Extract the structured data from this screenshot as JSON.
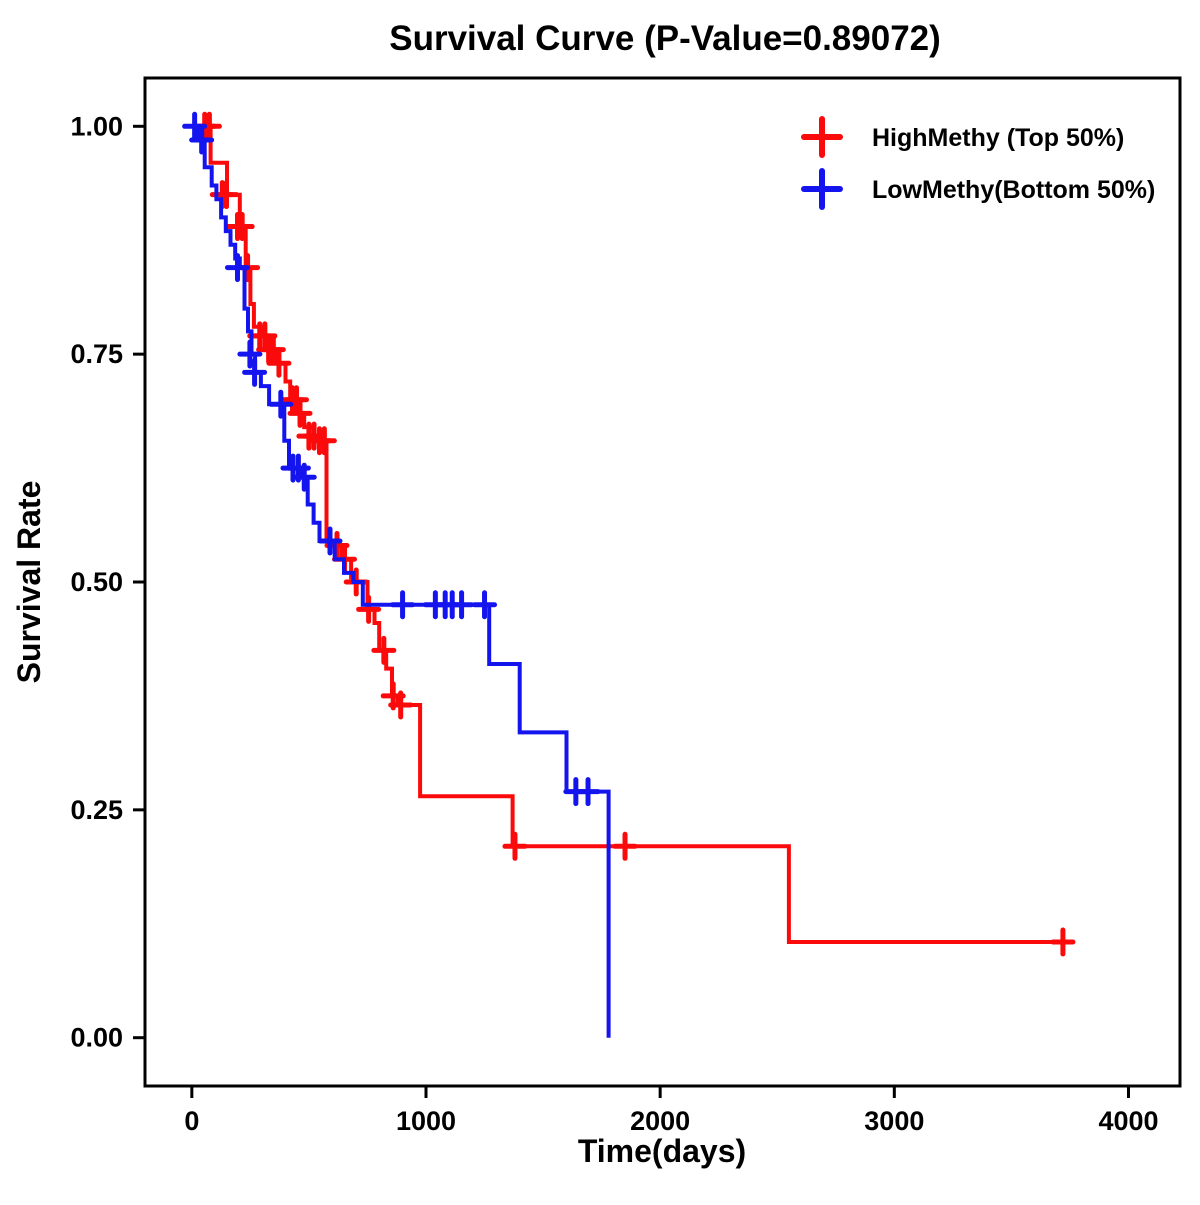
{
  "chart_data": {
    "type": "line",
    "subtype": "kaplan-meier-step",
    "title": "Survival Curve (P-Value=0.89072)",
    "xlabel": "Time(days)",
    "ylabel": "Survival Rate",
    "xlim": [
      -200,
      4220
    ],
    "ylim": [
      -0.053,
      1.053
    ],
    "xticks": {
      "values": [
        0,
        1000,
        2000,
        3000,
        4000
      ],
      "labels": [
        "0",
        "1000",
        "2000",
        "3000",
        "4000"
      ]
    },
    "yticks": {
      "values": [
        0.0,
        0.25,
        0.5,
        0.75,
        1.0
      ],
      "labels": [
        "0.00",
        "0.25",
        "0.50",
        "0.75",
        "1.00"
      ]
    },
    "grid": false,
    "legend_position": "top-right",
    "series": [
      {
        "name": "HighMethy (Top 50%)",
        "color": "#FA0A0A",
        "end_time": 3720,
        "step_points": [
          [
            0,
            1.0
          ],
          [
            80,
            0.96
          ],
          [
            150,
            0.925
          ],
          [
            205,
            0.89
          ],
          [
            230,
            0.845
          ],
          [
            250,
            0.805
          ],
          [
            265,
            0.78
          ],
          [
            300,
            0.77
          ],
          [
            340,
            0.755
          ],
          [
            365,
            0.74
          ],
          [
            400,
            0.72
          ],
          [
            420,
            0.7
          ],
          [
            450,
            0.685
          ],
          [
            480,
            0.67
          ],
          [
            520,
            0.66
          ],
          [
            560,
            0.655
          ],
          [
            575,
            0.545
          ],
          [
            600,
            0.54
          ],
          [
            640,
            0.525
          ],
          [
            680,
            0.505
          ],
          [
            700,
            0.5
          ],
          [
            750,
            0.47
          ],
          [
            780,
            0.455
          ],
          [
            800,
            0.425
          ],
          [
            830,
            0.405
          ],
          [
            855,
            0.375
          ],
          [
            880,
            0.365
          ],
          [
            975,
            0.265
          ],
          [
            1370,
            0.21
          ],
          [
            2550,
            0.105
          ]
        ],
        "censors": [
          [
            55,
            1.0
          ],
          [
            75,
            1.0
          ],
          [
            130,
            0.925
          ],
          [
            148,
            0.925
          ],
          [
            195,
            0.89
          ],
          [
            215,
            0.89
          ],
          [
            238,
            0.845
          ],
          [
            290,
            0.77
          ],
          [
            312,
            0.77
          ],
          [
            328,
            0.755
          ],
          [
            348,
            0.755
          ],
          [
            372,
            0.74
          ],
          [
            430,
            0.7
          ],
          [
            447,
            0.7
          ],
          [
            462,
            0.685
          ],
          [
            500,
            0.66
          ],
          [
            522,
            0.66
          ],
          [
            545,
            0.655
          ],
          [
            566,
            0.655
          ],
          [
            620,
            0.54
          ],
          [
            652,
            0.525
          ],
          [
            702,
            0.5
          ],
          [
            755,
            0.47
          ],
          [
            820,
            0.425
          ],
          [
            860,
            0.375
          ],
          [
            892,
            0.365
          ],
          [
            1380,
            0.21
          ],
          [
            1850,
            0.21
          ],
          [
            3720,
            0.105
          ]
        ]
      },
      {
        "name": "LowMethy(Bottom 50%)",
        "color": "#1414EE",
        "end_time": 1780,
        "step_points": [
          [
            0,
            1.0
          ],
          [
            25,
            0.985
          ],
          [
            55,
            0.955
          ],
          [
            85,
            0.935
          ],
          [
            105,
            0.92
          ],
          [
            125,
            0.9
          ],
          [
            145,
            0.885
          ],
          [
            165,
            0.87
          ],
          [
            185,
            0.855
          ],
          [
            205,
            0.845
          ],
          [
            225,
            0.8
          ],
          [
            240,
            0.775
          ],
          [
            255,
            0.75
          ],
          [
            270,
            0.73
          ],
          [
            295,
            0.715
          ],
          [
            330,
            0.695
          ],
          [
            395,
            0.655
          ],
          [
            415,
            0.625
          ],
          [
            470,
            0.615
          ],
          [
            495,
            0.585
          ],
          [
            520,
            0.565
          ],
          [
            545,
            0.545
          ],
          [
            610,
            0.525
          ],
          [
            650,
            0.51
          ],
          [
            690,
            0.5
          ],
          [
            730,
            0.475
          ],
          [
            1270,
            0.41
          ],
          [
            1400,
            0.335
          ],
          [
            1600,
            0.27
          ],
          [
            1780,
            0.0
          ]
        ],
        "censors": [
          [
            12,
            1.0
          ],
          [
            42,
            0.985
          ],
          [
            195,
            0.845
          ],
          [
            248,
            0.75
          ],
          [
            268,
            0.73
          ],
          [
            380,
            0.695
          ],
          [
            432,
            0.625
          ],
          [
            455,
            0.625
          ],
          [
            480,
            0.615
          ],
          [
            590,
            0.545
          ],
          [
            900,
            0.475
          ],
          [
            1040,
            0.475
          ],
          [
            1082,
            0.475
          ],
          [
            1112,
            0.475
          ],
          [
            1152,
            0.475
          ],
          [
            1250,
            0.475
          ],
          [
            1640,
            0.27
          ],
          [
            1692,
            0.27
          ]
        ]
      }
    ]
  }
}
